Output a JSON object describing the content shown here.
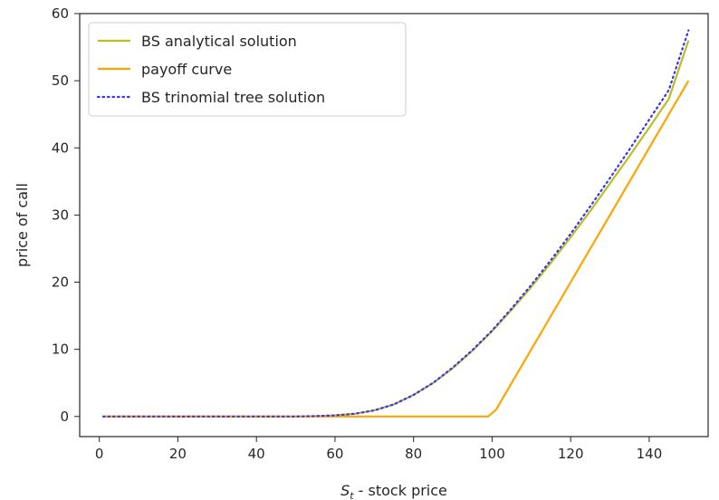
{
  "chart_data": {
    "type": "line",
    "xlabel_main": "S",
    "xlabel_sub": "t",
    "xlabel_rest": " - stock price",
    "ylabel": "price of call",
    "xlim": [
      -5,
      155
    ],
    "ylim": [
      -3,
      60
    ],
    "xticks": [
      0,
      20,
      40,
      60,
      80,
      100,
      120,
      140
    ],
    "yticks": [
      0,
      10,
      20,
      30,
      40,
      50,
      60
    ],
    "legend_position": "upper-left",
    "series": [
      {
        "name": "BS analytical solution",
        "color": "#bcbd22",
        "style": "solid",
        "x": [
          1,
          10,
          20,
          30,
          40,
          50,
          55,
          60,
          65,
          70,
          75,
          80,
          85,
          90,
          95,
          100,
          105,
          110,
          115,
          120,
          125,
          130,
          135,
          140,
          145,
          150
        ],
        "y": [
          0,
          0,
          0,
          0,
          0,
          0,
          0.05,
          0.15,
          0.4,
          0.9,
          1.8,
          3.2,
          5.0,
          7.2,
          9.8,
          12.7,
          15.9,
          19.3,
          22.9,
          26.7,
          30.6,
          34.7,
          38.8,
          43.0,
          47.3,
          56.0
        ]
      },
      {
        "name": "payoff curve",
        "color": "#ffa500",
        "style": "solid",
        "x": [
          1,
          20,
          40,
          60,
          80,
          99,
          101,
          110,
          120,
          130,
          140,
          150
        ],
        "y": [
          0,
          0,
          0,
          0,
          0,
          0,
          1,
          10,
          20,
          30,
          40,
          50
        ]
      },
      {
        "name": "BS trinomial tree solution",
        "color": "#3333ff",
        "style": "dotted",
        "x": [
          1,
          10,
          20,
          30,
          40,
          50,
          55,
          60,
          65,
          70,
          75,
          80,
          85,
          90,
          95,
          100,
          105,
          110,
          115,
          120,
          125,
          130,
          135,
          140,
          145,
          150
        ],
        "y": [
          0,
          0,
          0,
          0,
          0,
          0,
          0.05,
          0.15,
          0.4,
          0.9,
          1.8,
          3.2,
          5.0,
          7.3,
          9.9,
          12.8,
          16.1,
          19.6,
          23.3,
          27.2,
          31.3,
          35.5,
          39.8,
          44.2,
          48.6,
          57.5
        ]
      }
    ]
  }
}
